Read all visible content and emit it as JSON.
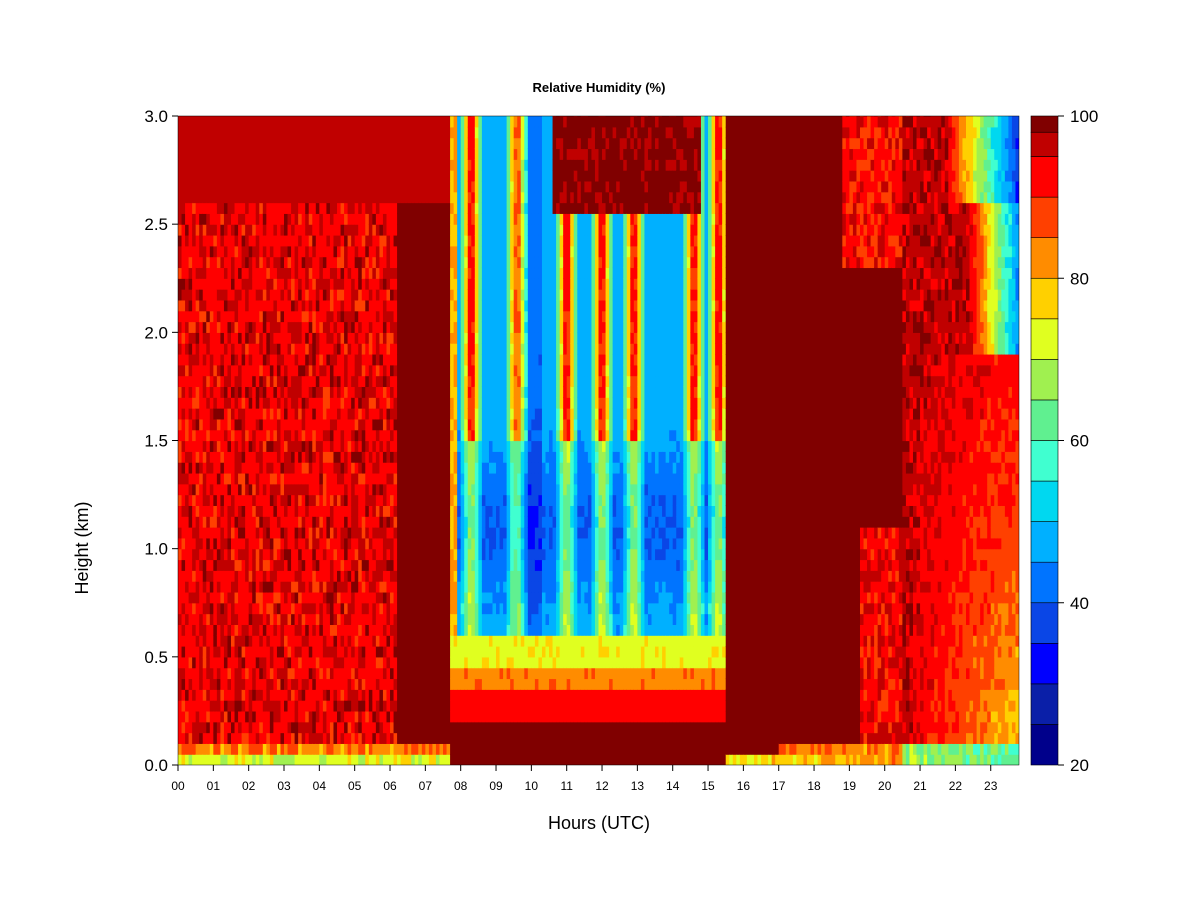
{
  "chart_data": {
    "type": "heatmap",
    "title": "Relative Humidity (%)",
    "xlabel": "Hours (UTC)",
    "ylabel": "Height (km)",
    "xlim": [
      0,
      23.8
    ],
    "ylim": [
      0,
      3.0
    ],
    "x_ticks": [
      "00",
      "01",
      "02",
      "03",
      "04",
      "05",
      "06",
      "07",
      "08",
      "09",
      "10",
      "11",
      "12",
      "13",
      "14",
      "15",
      "16",
      "17",
      "18",
      "19",
      "20",
      "21",
      "22",
      "23"
    ],
    "y_ticks": [
      "0.0",
      "0.5",
      "1.0",
      "1.5",
      "2.0",
      "2.5",
      "3.0"
    ],
    "colorbar": {
      "range": [
        20,
        100
      ],
      "ticks": [
        "20",
        "40",
        "60",
        "80",
        "100"
      ],
      "levels": [
        {
          "from": 20,
          "to": 25,
          "color": "#00008b"
        },
        {
          "from": 25,
          "to": 30,
          "color": "#0a1fa8"
        },
        {
          "from": 30,
          "to": 35,
          "color": "#0000ff"
        },
        {
          "from": 35,
          "to": 40,
          "color": "#0a46e6"
        },
        {
          "from": 40,
          "to": 45,
          "color": "#0074ff"
        },
        {
          "from": 45,
          "to": 50,
          "color": "#00b0ff"
        },
        {
          "from": 50,
          "to": 55,
          "color": "#00d8f0"
        },
        {
          "from": 55,
          "to": 60,
          "color": "#40ffd0"
        },
        {
          "from": 60,
          "to": 65,
          "color": "#60f090"
        },
        {
          "from": 65,
          "to": 70,
          "color": "#a0f050"
        },
        {
          "from": 70,
          "to": 75,
          "color": "#e0ff20"
        },
        {
          "from": 75,
          "to": 80,
          "color": "#ffd000"
        },
        {
          "from": 80,
          "to": 85,
          "color": "#ff8c00"
        },
        {
          "from": 85,
          "to": 90,
          "color": "#ff4000"
        },
        {
          "from": 90,
          "to": 95,
          "color": "#ff0000"
        },
        {
          "from": 95,
          "to": 98,
          "color": "#c00000"
        },
        {
          "from": 98,
          "to": 100,
          "color": "#800000"
        }
      ]
    },
    "features": [
      {
        "hours": [
          0,
          7.7
        ],
        "description": "moist near-saturated layer, mostly 85-100% RH"
      },
      {
        "hours": [
          7.7,
          15.5
        ],
        "description": "drier convective period, 30-60% RH aloft with saturated surface layer below 0.45 km"
      },
      {
        "hours": [
          15.5,
          21
        ],
        "description": "saturated, ~100% RH"
      },
      {
        "hours": [
          21,
          23.8
        ],
        "description": "drying near surface and at upper right"
      }
    ]
  }
}
